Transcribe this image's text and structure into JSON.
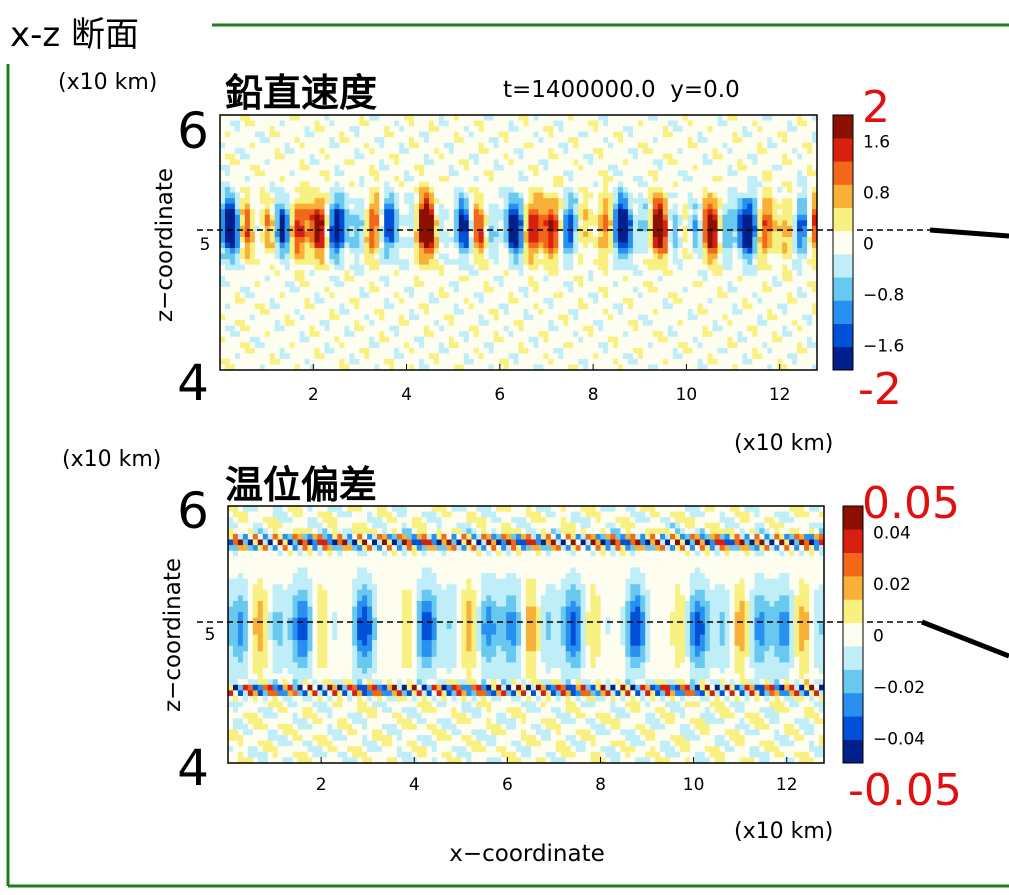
{
  "section_title": "x-z 断面",
  "colors": {
    "frame_green": "#1e7d1e",
    "annotation_red": "#e01010",
    "negative_strong": "#00208c",
    "neutral": "#fdfdf0",
    "positive_strong": "#8c1000"
  },
  "chart_data": [
    {
      "type": "heatmap",
      "title": "鉛直速度",
      "info": "t=1400000.0  y=0.0",
      "xlabel": "",
      "ylabel": "z−coordinate",
      "unit_y": "(x10 km)",
      "unit_x": "(x10 km)",
      "xlim": [
        0,
        12.8
      ],
      "ylim": [
        4,
        6
      ],
      "x_ticks": [
        2,
        4,
        6,
        8,
        10,
        12
      ],
      "y_ticks": [
        5
      ],
      "y_big_labels": [
        "6",
        "4"
      ],
      "dashed_line_z": 5.08,
      "colorbar": {
        "min": -2,
        "max": 2,
        "tick_values": [
          1.6,
          0.8,
          0,
          -0.8,
          -1.6
        ],
        "tick_labels": [
          "1.6",
          "0.8",
          "0",
          "−0.8",
          "−1.6"
        ],
        "max_label": "2",
        "min_label": "-2",
        "levels": [
          "#00208c",
          "#0050d8",
          "#2890f0",
          "#68c8f0",
          "#c0eef8",
          "#fdfdf0",
          "#f8f080",
          "#f8b038",
          "#f06818",
          "#d82010",
          "#8c1000"
        ]
      }
    },
    {
      "type": "heatmap",
      "title": "温位偏差",
      "xlabel": "x−coordinate",
      "ylabel": "z−coordinate",
      "unit_y": "(x10 km)",
      "unit_x": "(x10 km)",
      "xlim": [
        0,
        12.8
      ],
      "ylim": [
        4,
        6
      ],
      "x_ticks": [
        2,
        4,
        6,
        8,
        10,
        12
      ],
      "y_ticks": [
        5
      ],
      "y_big_labels": [
        "6",
        "4"
      ],
      "dashed_line_z": 5.08,
      "colorbar": {
        "min": -0.05,
        "max": 0.05,
        "tick_values": [
          0.04,
          0.02,
          0,
          -0.02,
          -0.04
        ],
        "tick_labels": [
          "0.04",
          "0.02",
          "0",
          "−0.02",
          "−0.04"
        ],
        "max_label": "0.05",
        "min_label": "-0.05",
        "levels": [
          "#00208c",
          "#0050d8",
          "#2890f0",
          "#68c8f0",
          "#c0eef8",
          "#fdfdf0",
          "#f8f080",
          "#f8b038",
          "#f06818",
          "#d82010",
          "#8c1000"
        ]
      }
    }
  ]
}
